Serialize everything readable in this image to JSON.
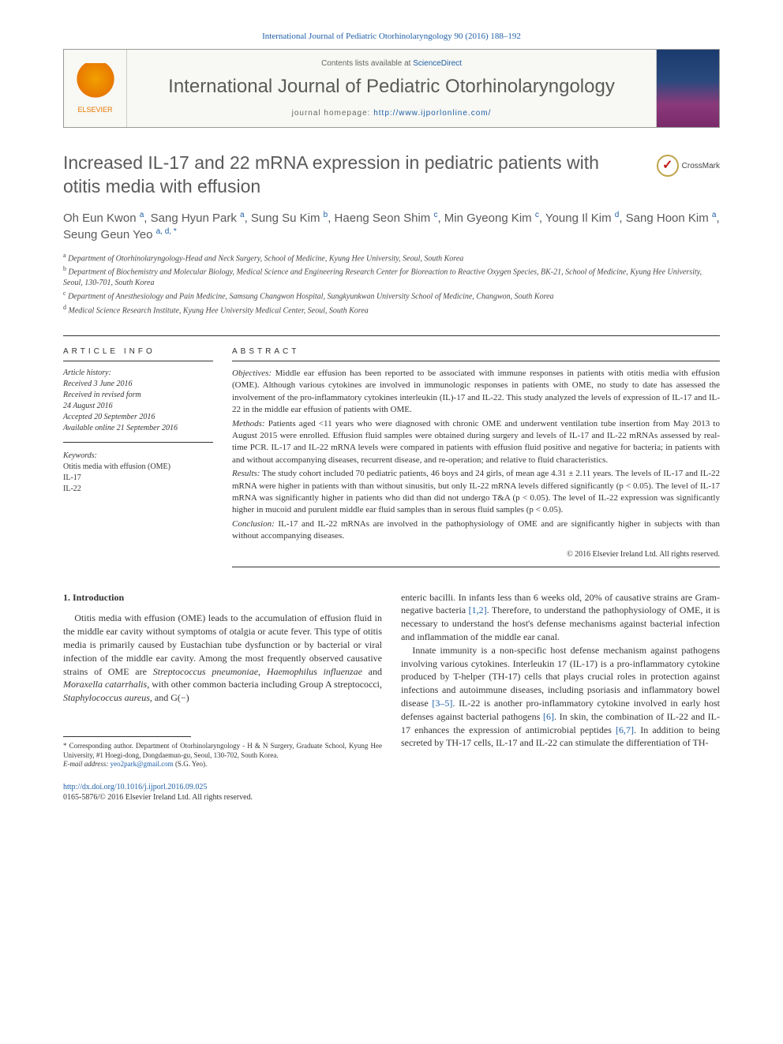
{
  "journal_ref": "International Journal of Pediatric Otorhinolaryngology 90 (2016) 188–192",
  "header": {
    "contents_prefix": "Contents lists available at ",
    "contents_link": "ScienceDirect",
    "journal_title": "International Journal of Pediatric Otorhinolaryngology",
    "homepage_prefix": "journal homepage: ",
    "homepage_url": "http://www.ijporlonline.com/",
    "publisher_logo_label": "ELSEVIER"
  },
  "crossmark_label": "CrossMark",
  "title": "Increased IL-17 and 22 mRNA expression in pediatric patients with otitis media with effusion",
  "authors_html": "Oh Eun Kwon <sup>a</sup>, Sang Hyun Park <sup>a</sup>, Sung Su Kim <sup>b</sup>, Haeng Seon Shim <sup>c</sup>, Min Gyeong Kim <sup>c</sup>, Young Il Kim <sup>d</sup>, Sang Hoon Kim <sup>a</sup>, Seung Geun Yeo <sup>a, d, <span class='star'>*</span></sup>",
  "affiliations": [
    {
      "key": "a",
      "text": "Department of Otorhinolaryngology-Head and Neck Surgery, School of Medicine, Kyung Hee University, Seoul, South Korea"
    },
    {
      "key": "b",
      "text": "Department of Biochemistry and Molecular Biology, Medical Science and Engineering Research Center for Bioreaction to Reactive Oxygen Species, BK-21, School of Medicine, Kyung Hee University, Seoul, 130-701, South Korea"
    },
    {
      "key": "c",
      "text": "Department of Anesthesiology and Pain Medicine, Samsung Changwon Hospital, Sungkyunkwan University School of Medicine, Changwon, South Korea"
    },
    {
      "key": "d",
      "text": "Medical Science Research Institute, Kyung Hee University Medical Center, Seoul, South Korea"
    }
  ],
  "article_info_heading": "ARTICLE INFO",
  "history": {
    "label": "Article history:",
    "lines": [
      "Received 3 June 2016",
      "Received in revised form",
      "24 August 2016",
      "Accepted 20 September 2016",
      "Available online 21 September 2016"
    ]
  },
  "keywords": {
    "label": "Keywords:",
    "items": [
      "Otitis media with effusion (OME)",
      "IL-17",
      "IL-22"
    ]
  },
  "abstract_heading": "ABSTRACT",
  "abstract": {
    "objectives_label": "Objectives:",
    "objectives": "Middle ear effusion has been reported to be associated with immune responses in patients with otitis media with effusion (OME). Although various cytokines are involved in immunologic responses in patients with OME, no study to date has assessed the involvement of the pro-inflammatory cytokines interleukin (IL)-17 and IL-22. This study analyzed the levels of expression of IL-17 and IL-22 in the middle ear effusion of patients with OME.",
    "methods_label": "Methods:",
    "methods": "Patients aged <11 years who were diagnosed with chronic OME and underwent ventilation tube insertion from May 2013 to August 2015 were enrolled. Effusion fluid samples were obtained during surgery and levels of IL-17 and IL-22 mRNAs assessed by real-time PCR. IL-17 and IL-22 mRNA levels were compared in patients with effusion fluid positive and negative for bacteria; in patients with and without accompanying diseases, recurrent disease, and re-operation; and relative to fluid characteristics.",
    "results_label": "Results:",
    "results": "The study cohort included 70 pediatric patients, 46 boys and 24 girls, of mean age 4.31 ± 2.11 years. The levels of IL-17 and IL-22 mRNA were higher in patients with than without sinusitis, but only IL-22 mRNA levels differed significantly (p < 0.05). The level of IL-17 mRNA was significantly higher in patients who did than did not undergo T&A (p < 0.05). The level of IL-22 expression was significantly higher in mucoid and purulent middle ear fluid samples than in serous fluid samples (p < 0.05).",
    "conclusion_label": "Conclusion:",
    "conclusion": "IL-17 and IL-22 mRNAs are involved in the pathophysiology of OME and are significantly higher in subjects with than without accompanying diseases.",
    "copyright": "© 2016 Elsevier Ireland Ltd. All rights reserved."
  },
  "section1": {
    "heading": "1. Introduction",
    "col1_html": "Otitis media with effusion (OME) leads to the accumulation of effusion fluid in the middle ear cavity without symptoms of otalgia or acute fever. This type of otitis media is primarily caused by Eustachian tube dysfunction or by bacterial or viral infection of the middle ear cavity. Among the most frequently observed causative strains of OME are <em>Streptococcus pneumoniae</em>, <em>Haemophilus influenzae</em> and <em>Moraxella catarrhalis</em>, with other common bacteria including Group A streptococci, <em>Staphylococcus aureus</em>, and G(−)",
    "col2_p1_html": "enteric bacilli. In infants less than 6 weeks old, 20% of causative strains are Gram-negative bacteria <span class='ref-link'>[1,2]</span>. Therefore, to understand the pathophysiology of OME, it is necessary to understand the host's defense mechanisms against bacterial infection and inflammation of the middle ear canal.",
    "col2_p2_html": "Innate immunity is a non-specific host defense mechanism against pathogens involving various cytokines. Interleukin 17 (IL-17) is a pro-inflammatory cytokine produced by T-helper (TH-17) cells that plays crucial roles in protection against infections and autoimmune diseases, including psoriasis and inflammatory bowel disease <span class='ref-link'>[3–5]</span>. IL-22 is another pro-inflammatory cytokine involved in early host defenses against bacterial pathogens <span class='ref-link'>[6]</span>. In skin, the combination of IL-22 and IL-17 enhances the expression of antimicrobial peptides <span class='ref-link'>[6,7]</span>. In addition to being secreted by TH-17 cells, IL-17 and IL-22 can stimulate the differentiation of TH-"
  },
  "footnote": {
    "corr_label": "* Corresponding author.",
    "corr_text": "Department of Otorhinolaryngology - H & N Surgery, Graduate School, Kyung Hee University, #1 Hoegi-dong, Dongdaemun-gu, Seoul, 130-702, South Korea.",
    "email_label": "E-mail address:",
    "email": "yeo2park@gmail.com",
    "email_suffix": "(S.G. Yeo)."
  },
  "doi": {
    "url": "http://dx.doi.org/10.1016/j.ijporl.2016.09.025",
    "issn_line": "0165-5876/© 2016 Elsevier Ireland Ltd. All rights reserved."
  },
  "colors": {
    "link": "#2060a7",
    "heading_gray": "#5a5a5a",
    "elsevier_orange": "#e87800",
    "text": "#333333",
    "rule": "#333333",
    "background": "#ffffff"
  },
  "typography": {
    "body_fontsize_pt": 9,
    "title_fontsize_pt": 17,
    "journal_title_fontsize_pt": 18,
    "abstract_fontsize_pt": 8,
    "footnote_fontsize_pt": 7
  }
}
